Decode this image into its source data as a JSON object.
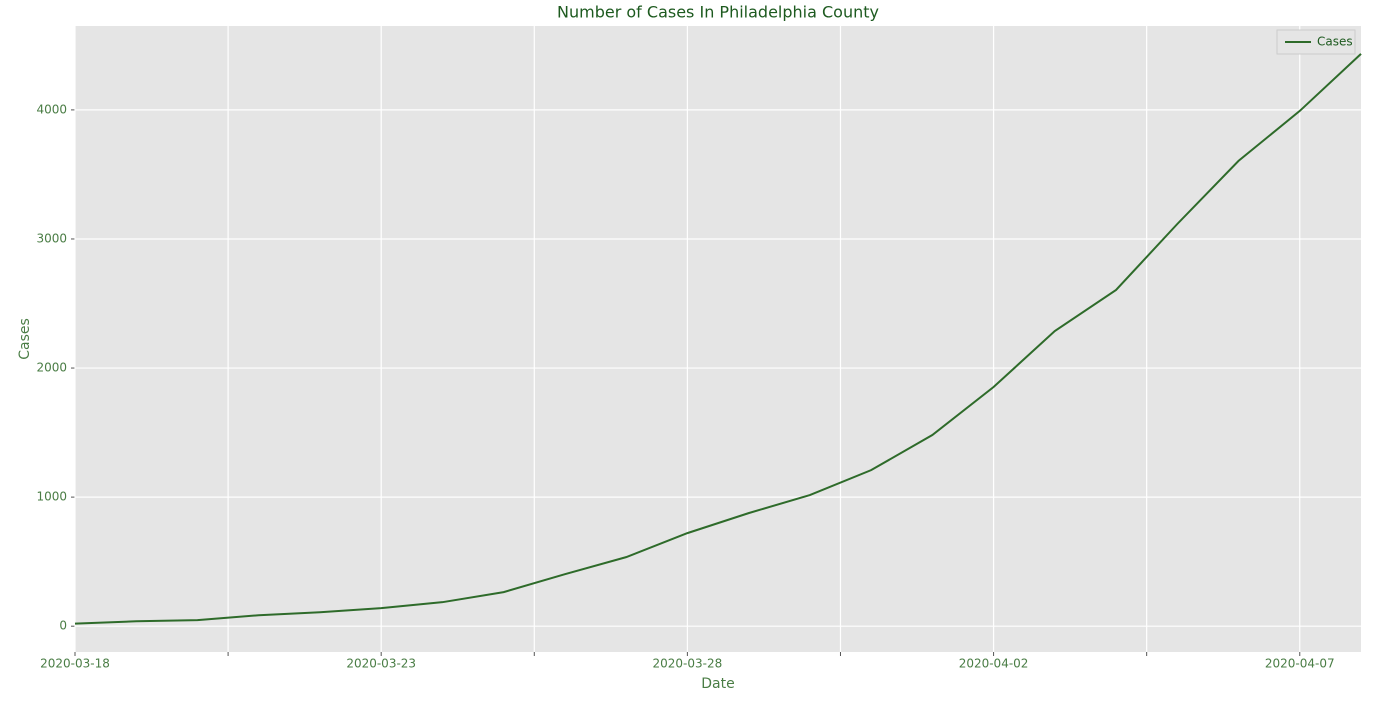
{
  "chart_data": {
    "type": "line",
    "title": "Number of Cases In Philadelphia County",
    "xlabel": "Date",
    "ylabel": "Cases",
    "x": [
      "2020-03-18",
      "2020-03-19",
      "2020-03-20",
      "2020-03-21",
      "2020-03-22",
      "2020-03-23",
      "2020-03-24",
      "2020-03-25",
      "2020-03-26",
      "2020-03-27",
      "2020-03-28",
      "2020-03-29",
      "2020-03-30",
      "2020-03-31",
      "2020-04-01",
      "2020-04-02",
      "2020-04-03",
      "2020-04-04",
      "2020-04-05",
      "2020-04-06",
      "2020-04-07",
      "2020-04-08"
    ],
    "series": [
      {
        "name": "Cases",
        "color": "#2e6b2a",
        "values": [
          20,
          38,
          47,
          85,
          108,
          140,
          186,
          264,
          403,
          535,
          721,
          876,
          1016,
          1209,
          1481,
          1853,
          2287,
          2605,
          3116,
          3605,
          3992,
          4434
        ]
      }
    ],
    "xlim": [
      "2020-03-18",
      "2020-04-08"
    ],
    "xticks": [
      "2020-03-18",
      {
        "value": "2020-03-20T12:00",
        "label": null
      },
      "2020-03-23",
      {
        "value": "2020-03-25T12:00",
        "label": null
      },
      "2020-03-28",
      {
        "value": "2020-03-30T12:00",
        "label": null
      },
      "2020-04-02",
      {
        "value": "2020-04-04T12:00",
        "label": null
      },
      "2020-04-07"
    ],
    "ylim": [
      -200,
      4650
    ],
    "yticks": [
      0,
      1000,
      2000,
      3000,
      4000
    ],
    "grid": true,
    "legend": "upper right"
  }
}
